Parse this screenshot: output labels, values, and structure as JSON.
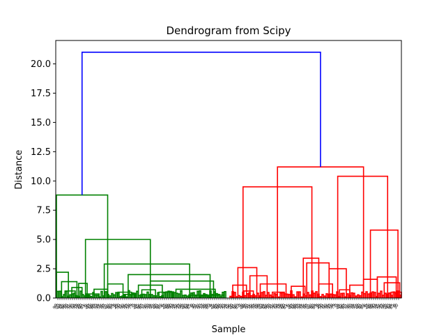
{
  "chart_data": {
    "type": "dendrogram",
    "title": "Dendrogram from Scipy",
    "xlabel": "Sample",
    "ylabel": "Distance",
    "ylim": [
      0,
      22
    ],
    "yticks": [
      "0.0",
      "2.5",
      "5.0",
      "7.5",
      "10.0",
      "12.5",
      "15.0",
      "17.5",
      "20.0"
    ],
    "ytick_values": [
      0,
      2.5,
      5,
      7.5,
      10,
      12.5,
      15,
      17.5,
      20
    ],
    "colors": {
      "root": "#0000ff",
      "cluster_1": "#008000",
      "cluster_2": "#ff0000"
    },
    "root_merge_height": 21.0,
    "clusters": [
      {
        "name": "",
        "color": "#008000",
        "merge_height": 8.8,
        "segments": [
          {
            "x0": 0.0,
            "x1": 0.3,
            "h": 8.8
          },
          {
            "x0": 0.17,
            "x1": 0.55,
            "h": 5.0
          },
          {
            "x0": 0.28,
            "x1": 0.78,
            "h": 2.9
          },
          {
            "x0": 0.42,
            "x1": 0.9,
            "h": 2.0
          },
          {
            "x0": 0.55,
            "x1": 0.92,
            "h": 1.45
          },
          {
            "x0": 0.7,
            "x1": 0.93,
            "h": 0.75
          },
          {
            "x0": 0.78,
            "x1": 0.98,
            "h": 0.25
          },
          {
            "x0": 0.0,
            "x1": 0.07,
            "h": 2.2
          },
          {
            "x0": 0.03,
            "x1": 0.12,
            "h": 1.4
          },
          {
            "x0": 0.09,
            "x1": 0.15,
            "h": 0.9
          },
          {
            "x0": 0.13,
            "x1": 0.18,
            "h": 1.25
          },
          {
            "x0": 0.3,
            "x1": 0.39,
            "h": 1.2
          },
          {
            "x0": 0.36,
            "x1": 0.44,
            "h": 0.5
          },
          {
            "x0": 0.22,
            "x1": 0.3,
            "h": 0.75
          },
          {
            "x0": 0.48,
            "x1": 0.62,
            "h": 1.1
          },
          {
            "x0": 0.5,
            "x1": 0.58,
            "h": 0.7
          },
          {
            "x0": 0.6,
            "x1": 0.68,
            "h": 0.5
          },
          {
            "x0": 0.05,
            "x1": 0.11,
            "h": 0.6
          },
          {
            "x0": 0.19,
            "x1": 0.25,
            "h": 0.35
          },
          {
            "x0": 0.4,
            "x1": 0.46,
            "h": 0.3
          },
          {
            "x0": 0.84,
            "x1": 0.9,
            "h": 0.15
          }
        ]
      },
      {
        "name": "",
        "color": "#ff0000",
        "merge_height": 11.2,
        "segments": [
          {
            "x0": 0.28,
            "x1": 0.78,
            "h": 11.2
          },
          {
            "x0": 0.08,
            "x1": 0.48,
            "h": 9.5
          },
          {
            "x0": 0.63,
            "x1": 0.92,
            "h": 10.4
          },
          {
            "x0": 0.82,
            "x1": 0.98,
            "h": 5.8
          },
          {
            "x0": 0.58,
            "x1": 0.68,
            "h": 2.5
          },
          {
            "x0": 0.43,
            "x1": 0.52,
            "h": 3.4
          },
          {
            "x0": 0.45,
            "x1": 0.58,
            "h": 3.0
          },
          {
            "x0": 0.05,
            "x1": 0.16,
            "h": 2.6
          },
          {
            "x0": 0.12,
            "x1": 0.22,
            "h": 1.9
          },
          {
            "x0": 0.18,
            "x1": 0.33,
            "h": 1.2
          },
          {
            "x0": 0.86,
            "x1": 0.97,
            "h": 1.8
          },
          {
            "x0": 0.9,
            "x1": 0.99,
            "h": 1.3
          },
          {
            "x0": 0.78,
            "x1": 0.86,
            "h": 1.6
          },
          {
            "x0": 0.7,
            "x1": 0.78,
            "h": 1.1
          },
          {
            "x0": 0.52,
            "x1": 0.6,
            "h": 1.2
          },
          {
            "x0": 0.36,
            "x1": 0.44,
            "h": 1.0
          },
          {
            "x0": 0.02,
            "x1": 0.1,
            "h": 1.1
          },
          {
            "x0": 0.08,
            "x1": 0.14,
            "h": 0.6
          },
          {
            "x0": 0.25,
            "x1": 0.32,
            "h": 0.5
          },
          {
            "x0": 0.64,
            "x1": 0.7,
            "h": 0.7
          },
          {
            "x0": 0.94,
            "x1": 1.0,
            "h": 0.5
          }
        ]
      }
    ]
  }
}
